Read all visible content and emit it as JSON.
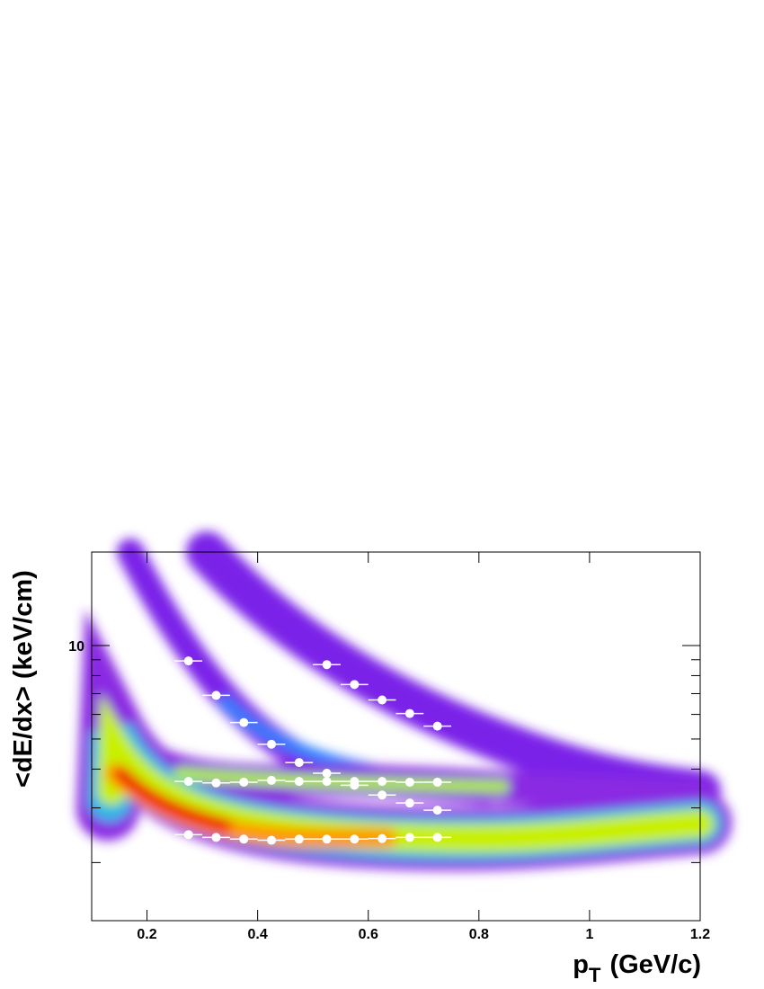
{
  "chart_data": {
    "type": "scatter",
    "x_label": {
      "base": "p",
      "subscript": "T",
      "unit": "(GeV/c)"
    },
    "y_label": "<dE/dx> (keV/cm)",
    "xlim": [
      0.1,
      1.2
    ],
    "xticks": [
      0.2,
      0.4,
      0.6,
      0.8,
      1,
      1.2
    ],
    "ylim": [
      1.3,
      20
    ],
    "yticks": [
      10
    ],
    "yminorticks": [
      2,
      3,
      4,
      5,
      6,
      7,
      8,
      9,
      20
    ],
    "log_y": true,
    "series": [
      {
        "color": "#ffffff",
        "xerr": 0.025,
        "x": [
          0.275,
          0.325,
          0.375,
          0.425,
          0.475,
          0.525,
          0.575,
          0.625,
          0.675,
          0.725
        ],
        "values": [
          2.46,
          2.41,
          2.38,
          2.36,
          2.38,
          2.38,
          2.38,
          2.39,
          2.41,
          2.41
        ]
      },
      {
        "color": "#ffffff",
        "xerr": 0.025,
        "x": [
          0.275,
          0.325,
          0.375,
          0.425,
          0.475,
          0.525,
          0.575,
          0.625,
          0.675,
          0.725
        ],
        "values": [
          3.65,
          3.61,
          3.63,
          3.68,
          3.65,
          3.65,
          3.65,
          3.65,
          3.63,
          3.63
        ]
      },
      {
        "color": "#ffffff",
        "xerr": 0.025,
        "x": [
          0.275,
          0.325,
          0.375,
          0.425,
          0.475,
          0.525,
          0.575,
          0.625,
          0.675,
          0.725
        ],
        "values": [
          8.92,
          6.91,
          5.65,
          4.81,
          4.2,
          3.88,
          3.55,
          3.3,
          3.11,
          2.95
        ]
      },
      {
        "color": "#ffffff",
        "xerr": 0.025,
        "x": [
          0.525,
          0.575,
          0.625,
          0.675,
          0.725
        ],
        "values": [
          8.68,
          7.49,
          6.68,
          6.04,
          5.5
        ]
      }
    ]
  }
}
